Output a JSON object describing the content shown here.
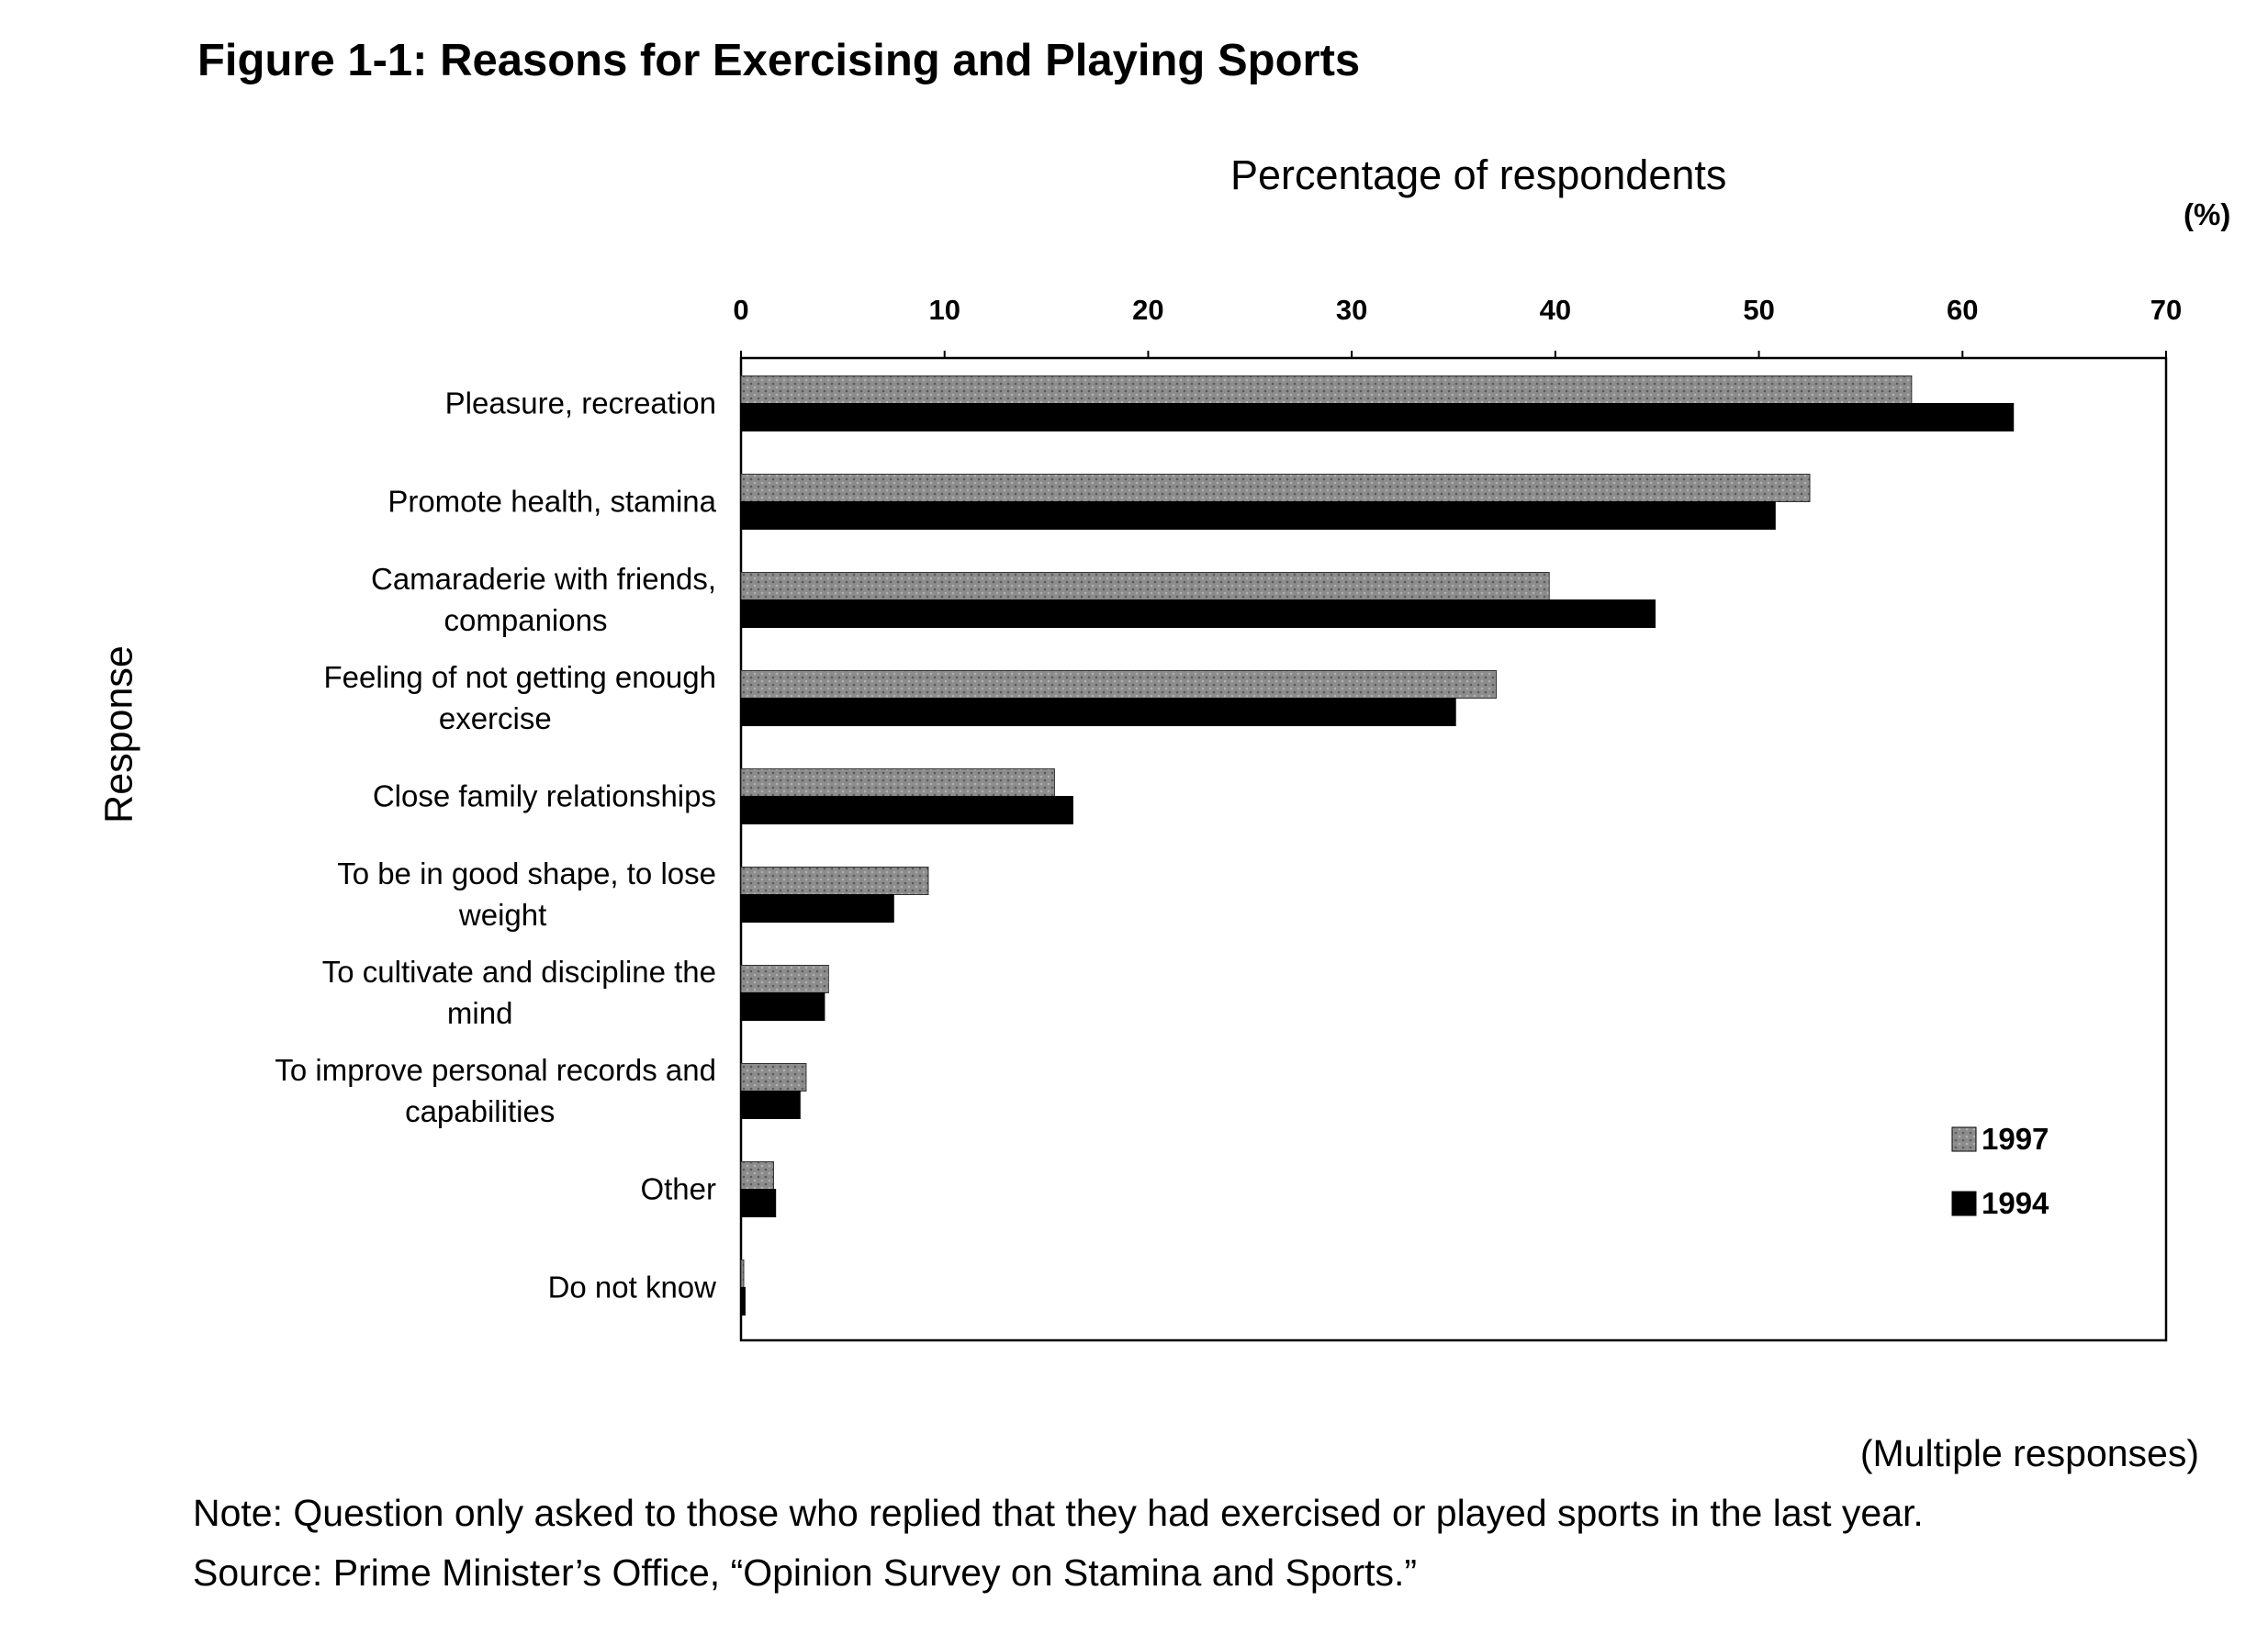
{
  "figure": {
    "title": "Figure 1-1: Reasons for Exercising and Playing Sports",
    "multiple_responses": "(Multiple responses)",
    "note": "Note: Question only asked to those who replied that they had exercised or played sports in the last year.",
    "source": "Source: Prime Minister’s Office, “Opinion Survey on Stamina and Sports.”"
  },
  "chart_data": {
    "type": "bar",
    "orientation": "horizontal",
    "title": "Figure 1-1: Reasons for Exercising and Playing Sports",
    "xlabel": "Percentage of respondents",
    "ylabel": "Response",
    "unit": "(%)",
    "xlim": [
      0,
      70
    ],
    "xticks": [
      "0",
      "10",
      "20",
      "30",
      "40",
      "50",
      "60",
      "70"
    ],
    "grid": false,
    "legend_position": "bottom-right",
    "categories": [
      [
        "Pleasure, recreation"
      ],
      [
        "Promote health, stamina"
      ],
      [
        "Camaraderie with friends,",
        "companions"
      ],
      [
        "Feeling of not getting enough",
        "exercise"
      ],
      [
        "Close family relationships"
      ],
      [
        "To be in good shape, to lose",
        "weight"
      ],
      [
        "To cultivate and discipline the",
        "mind"
      ],
      [
        "To improve personal records and",
        "capabilities"
      ],
      [
        "Other"
      ],
      [
        "Do not know"
      ]
    ],
    "series": [
      {
        "name": "1997",
        "color": "#7a7a7a",
        "pattern": "hatched",
        "values": [
          57.5,
          52.5,
          39.7,
          37.1,
          15.4,
          9.2,
          4.3,
          3.2,
          1.6,
          0.1
        ]
      },
      {
        "name": "1994",
        "color": "#000000",
        "pattern": "solid",
        "values": [
          62.5,
          50.8,
          44.9,
          35.1,
          16.3,
          7.5,
          4.1,
          2.9,
          1.7,
          0.2
        ]
      }
    ]
  }
}
